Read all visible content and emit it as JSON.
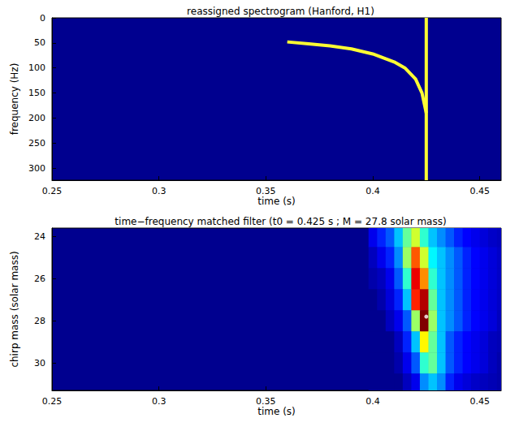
{
  "chart_data": [
    {
      "type": "line",
      "title": "reassigned spectrogram (Hanford, H1)",
      "x_label": "time (s)",
      "y_label": "frequency (Hz)",
      "xlim": [
        0.25,
        0.46
      ],
      "xticks": [
        0.25,
        0.3,
        0.35,
        0.4,
        0.45
      ],
      "ylim": [
        0,
        324
      ],
      "yticks": [
        0,
        50,
        100,
        150,
        200,
        250,
        300
      ],
      "inverted": "y",
      "series": [
        {
          "color": "#ffff33",
          "x": [
            0.36,
            0.37,
            0.38,
            0.39,
            0.4,
            0.41,
            0.415,
            0.42,
            0.423,
            0.425
          ],
          "values": [
            48,
            52,
            56,
            62,
            72,
            88,
            100,
            122,
            150,
            190
          ]
        },
        {
          "color": "#ffff33",
          "x": [
            0.425,
            0.425
          ],
          "values": [
            0,
            324
          ]
        }
      ]
    },
    {
      "type": "heatmap",
      "title": "time−frequency matched filter (t0 = 0.425 s ; M = 27.8 solar mass)",
      "x_label": "time (s)",
      "y_label": "chirp mass (solar mass)",
      "xlim": [
        0.25,
        0.46
      ],
      "xticks": [
        0.25,
        0.3,
        0.35,
        0.4,
        0.45
      ],
      "ylim": [
        23.6,
        31.3
      ],
      "yticks": [
        24,
        26,
        28,
        30
      ],
      "inverted": "y",
      "times": [
        0.4,
        0.404,
        0.408,
        0.412,
        0.416,
        0.42,
        0.424,
        0.428,
        0.432,
        0.436,
        0.44,
        0.444,
        0.448,
        0.452,
        0.456,
        0.46
      ],
      "masses": [
        24,
        25,
        26,
        27,
        28,
        29,
        30,
        31
      ],
      "cells": [
        [
          0.1,
          0.15,
          0.2,
          0.3,
          0.45,
          0.55,
          0.4,
          0.3,
          0.25,
          0.2,
          0.15,
          0.12,
          0.1,
          0.08,
          0.06,
          0.05
        ],
        [
          0.05,
          0.1,
          0.15,
          0.25,
          0.5,
          0.75,
          0.55,
          0.35,
          0.3,
          0.25,
          0.2,
          0.15,
          0.12,
          0.1,
          0.08,
          0.06
        ],
        [
          0.03,
          0.05,
          0.1,
          0.2,
          0.4,
          0.85,
          0.7,
          0.4,
          0.3,
          0.25,
          0.2,
          0.15,
          0.12,
          0.1,
          0.08,
          0.06
        ],
        [
          0,
          0.03,
          0.08,
          0.15,
          0.3,
          0.8,
          0.9,
          0.45,
          0.3,
          0.25,
          0.2,
          0.15,
          0.12,
          0.1,
          0.08,
          0.06
        ],
        [
          0,
          0,
          0.05,
          0.1,
          0.2,
          0.5,
          0.95,
          0.5,
          0.3,
          0.25,
          0.2,
          0.15,
          0.12,
          0.1,
          0.08,
          0.05
        ],
        [
          0,
          0,
          0,
          0.05,
          0.15,
          0.3,
          0.6,
          0.45,
          0.3,
          0.2,
          0.15,
          0.12,
          0.1,
          0.08,
          0.05,
          0.04
        ],
        [
          0,
          0,
          0,
          0.03,
          0.1,
          0.2,
          0.4,
          0.45,
          0.3,
          0.2,
          0.15,
          0.12,
          0.1,
          0.08,
          0.05,
          0.03
        ],
        [
          0,
          0,
          0,
          0,
          0.05,
          0.1,
          0.25,
          0.3,
          0.25,
          0.15,
          0.1,
          0.08,
          0.06,
          0.05,
          0.04,
          0.03
        ]
      ],
      "series": [
        {
          "type": "scatter",
          "marker": "circle",
          "color": "#ffffff",
          "x": [
            0.425
          ],
          "values": [
            27.8
          ]
        }
      ]
    }
  ]
}
